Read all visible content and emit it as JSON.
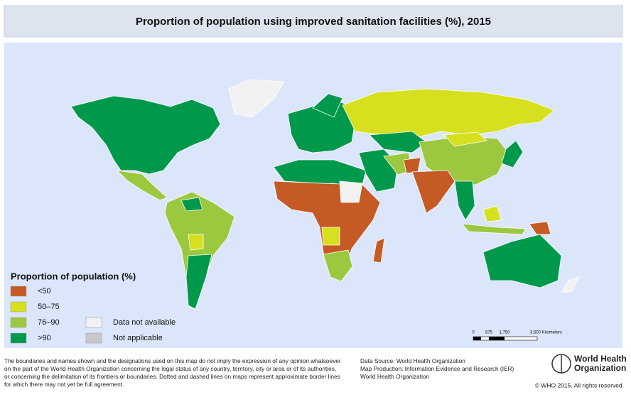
{
  "header": {
    "title": "Proportion of population using improved sanitation facilities (%), 2015"
  },
  "legend": {
    "title": "Proportion of population (%)",
    "items": [
      {
        "label": "<50",
        "color": "#c55a24"
      },
      {
        "label": "50–75",
        "color": "#d6e01e"
      },
      {
        "label": "76–90",
        "color": "#9cc83f"
      },
      {
        "label": ">90",
        "color": "#00994c"
      },
      {
        "label": "Data not available",
        "color": "#f2f2f2"
      },
      {
        "label": "Not applicable",
        "color": "#c8c8c8"
      }
    ]
  },
  "scale": {
    "labels": [
      "0",
      "875",
      "1,750",
      "3,500 Kilometers"
    ]
  },
  "disclaimer": [
    "The boundaries and names shown and the designations used on this map do not imply the expression of any opinion whatsoever",
    "on the part of the World Health Organization concerning the legal status of any country, territory, city or area or of its authorities,",
    "or concerning the delimitation of its frontiers or boundaries. Dotted and dashed lines on maps represent approximate border lines",
    "for which there may not yet be full agreement."
  ],
  "source": [
    "Data Source: World Health Organization",
    "Map Production: Information Evidence and Research (IER)",
    "World Health Organization"
  ],
  "logo": [
    "World Health",
    "Organization"
  ],
  "copyright": "© WHO 2015. All rights reserved."
}
